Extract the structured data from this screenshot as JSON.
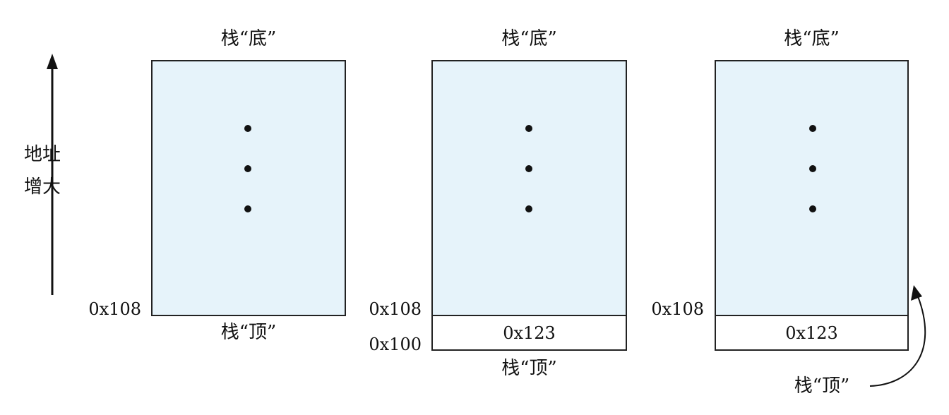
{
  "axis": {
    "label_line1": "地址",
    "label_line2": "增大",
    "arrow_icon": "up-arrow-icon"
  },
  "stacks": [
    {
      "bottom_label": "栈“底”",
      "top_label": "栈“顶”",
      "addr_main": "0x108",
      "cell_value": "",
      "addr_lower": ""
    },
    {
      "bottom_label": "栈“底”",
      "top_label": "栈“顶”",
      "addr_main": "0x108",
      "cell_value": "0x123",
      "addr_lower": "0x100"
    },
    {
      "bottom_label": "栈“底”",
      "top_label": "栈“顶”",
      "addr_main": "0x108",
      "cell_value": "0x123",
      "addr_lower": ""
    }
  ],
  "colors": {
    "stack_fill": "#e6f3fa",
    "line": "#222222"
  }
}
